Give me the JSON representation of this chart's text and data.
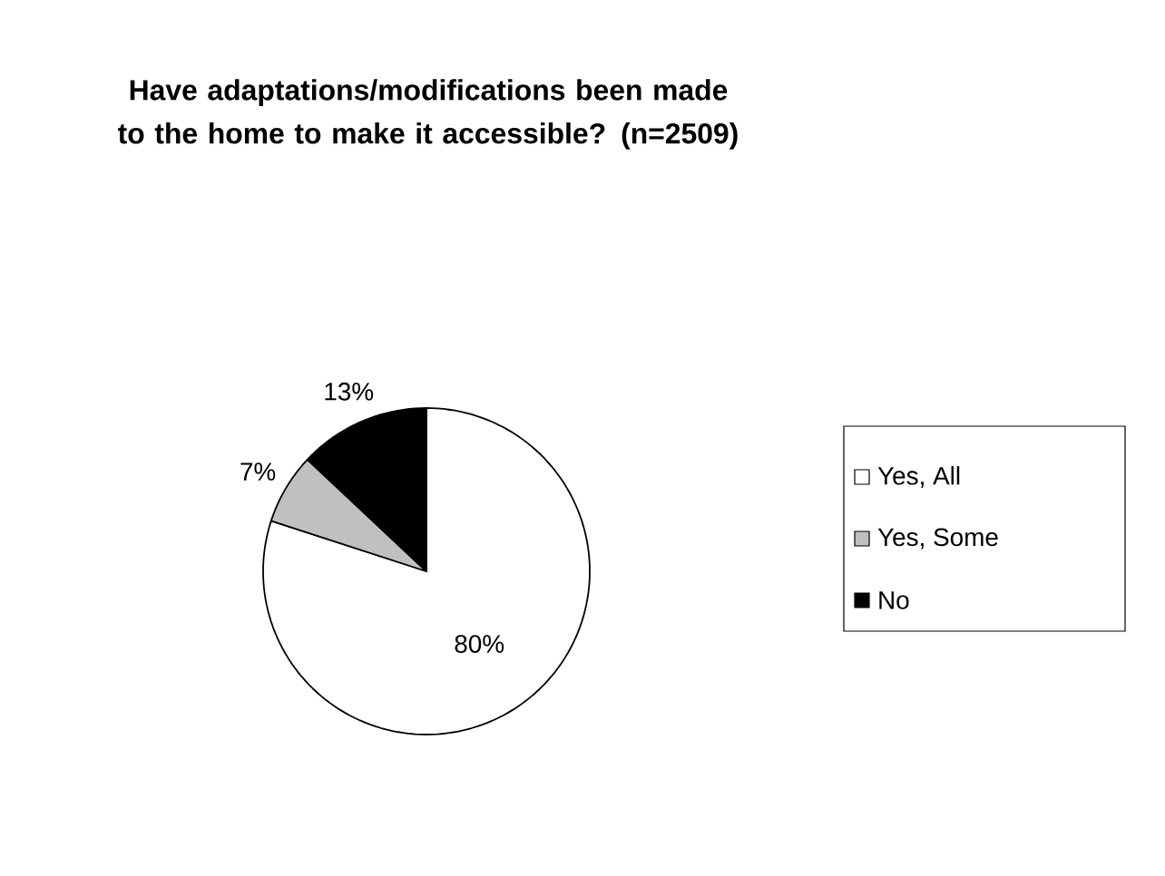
{
  "chart_data": {
    "type": "pie",
    "title": "Have adaptations/modifications been made to the home to make it accessible? (n=2509)",
    "categories": [
      "Yes, All",
      "Yes, Some",
      "No"
    ],
    "values": [
      80,
      7,
      13
    ],
    "colors": [
      "#ffffff",
      "#c0c0c0",
      "#000000"
    ],
    "value_labels": [
      "80%",
      "7%",
      "13%"
    ],
    "legend": "right"
  }
}
